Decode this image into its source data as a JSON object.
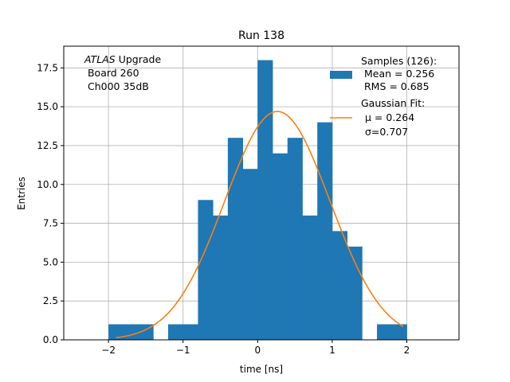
{
  "chart_data": {
    "type": "bar",
    "title": "Run 138",
    "xlabel": "time [ns]",
    "ylabel": "Entries",
    "xlim": [
      -2.6,
      2.7
    ],
    "ylim": [
      0,
      18.9
    ],
    "grid": true,
    "xticks": [
      -2,
      -1,
      0,
      1,
      2
    ],
    "xtick_labels": [
      "−2",
      "−1",
      "0",
      "1",
      "2"
    ],
    "yticks": [
      0,
      2.5,
      5,
      7.5,
      10,
      12.5,
      15,
      17.5
    ],
    "ytick_labels": [
      "0.0",
      "2.5",
      "5.0",
      "7.5",
      "10.0",
      "12.5",
      "15.0",
      "17.5"
    ],
    "bin_edges": [
      -2.0,
      -1.8,
      -1.6,
      -1.4,
      -1.2,
      -1.0,
      -0.8,
      -0.6,
      -0.4,
      -0.2,
      0.0,
      0.2,
      0.4,
      0.6,
      0.8,
      1.0,
      1.2,
      1.4,
      1.6,
      1.8,
      2.0
    ],
    "counts": [
      1,
      1,
      1,
      0,
      1,
      1,
      9,
      8,
      13,
      11,
      18,
      12,
      13,
      8,
      14,
      7,
      6,
      0,
      1,
      1
    ],
    "bar_color": "#1f77b4",
    "fit": {
      "mu": 0.264,
      "sigma": 0.707,
      "amplitude": 14.7,
      "x_range": [
        -1.9,
        1.95
      ],
      "color": "#ff7f0e"
    },
    "annotation": {
      "italic_part": "ATLAS",
      "line1_rest": " Upgrade",
      "line2": " Board 260",
      "line3": " Ch000 35dB"
    },
    "legend": {
      "position": "top-right",
      "samples_label": [
        "Samples (126):",
        " Mean = 0.256",
        " RMS = 0.685"
      ],
      "fit_label": [
        "Gaussian Fit:",
        "μ = 0.264",
        "σ=0.707"
      ]
    }
  }
}
